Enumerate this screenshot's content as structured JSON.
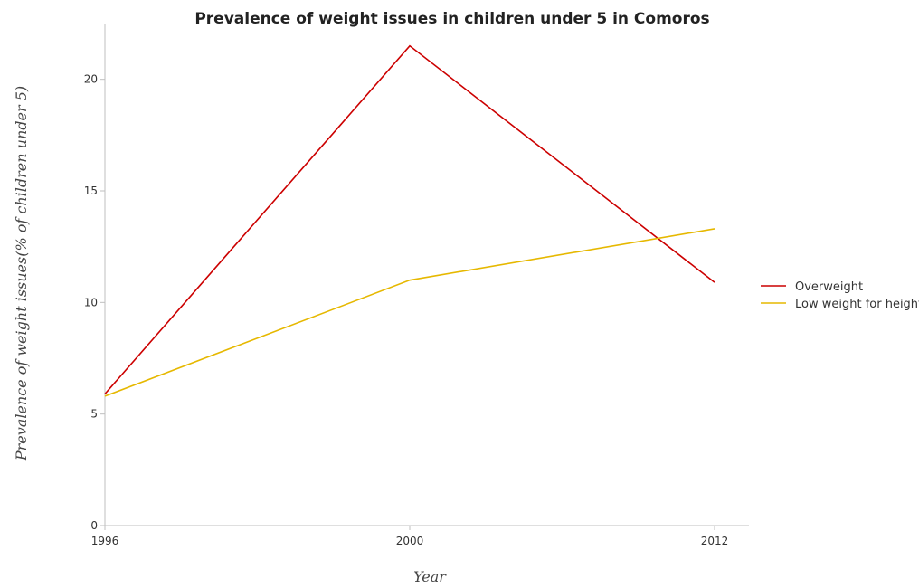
{
  "chart_data": {
    "type": "line",
    "title": "Prevalence of weight issues in children under 5 in Comoros",
    "xlabel": "Year",
    "ylabel": "Prevalence of weight issues(% of children under 5)",
    "categories": [
      "1996",
      "2000",
      "2012"
    ],
    "yticks": [
      0,
      5,
      10,
      15,
      20
    ],
    "ylim": [
      0,
      22.5
    ],
    "grid": false,
    "legend_position": "right",
    "series": [
      {
        "name": "Overweight",
        "color": "#cc0000",
        "values": [
          5.9,
          21.5,
          10.9
        ]
      },
      {
        "name": "Low weight for height",
        "color": "#e6b800",
        "values": [
          5.8,
          11.0,
          13.3
        ]
      }
    ]
  }
}
